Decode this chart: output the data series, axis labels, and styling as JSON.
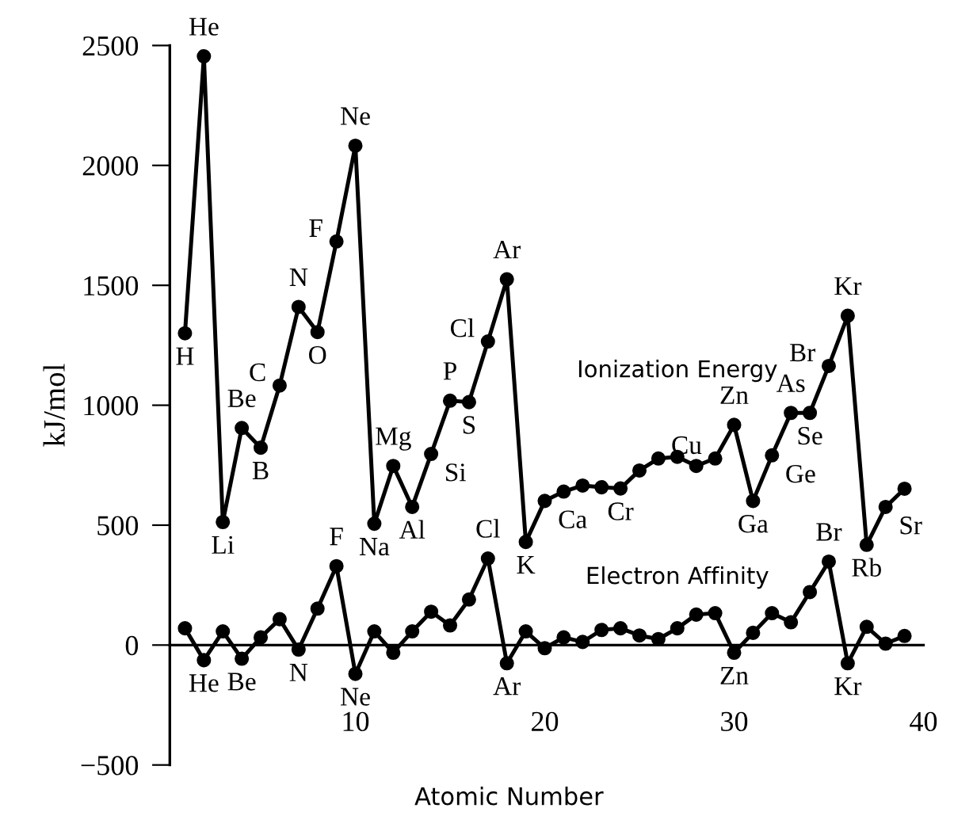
{
  "chart_data": {
    "type": "line",
    "xlabel": "Atomic Number",
    "ylabel": "kJ/mol",
    "xlim": [
      0.2,
      40
    ],
    "xticks": [
      10,
      20,
      30,
      40
    ],
    "ylim": [
      -500,
      2500
    ],
    "yticks": [
      -500,
      0,
      500,
      1000,
      1500,
      2000,
      2500
    ],
    "marker": "circle",
    "line_style": "solid",
    "grid": false,
    "legend": false,
    "series": [
      {
        "name": "Ionization Energy",
        "color": "#000000",
        "x": [
          1,
          2,
          3,
          4,
          5,
          6,
          7,
          8,
          9,
          10,
          11,
          12,
          13,
          14,
          15,
          16,
          17,
          18,
          19,
          20,
          21,
          22,
          23,
          24,
          25,
          26,
          27,
          28,
          29,
          30,
          31,
          32,
          33,
          34,
          35,
          36,
          37,
          38,
          39
        ],
        "values": [
          1300,
          2455,
          513,
          905,
          823,
          1082,
          1410,
          1305,
          1683,
          2082,
          506,
          747,
          576,
          797,
          1019,
          1013,
          1266,
          1525,
          430,
          601,
          640,
          665,
          658,
          653,
          728,
          778,
          785,
          747,
          778,
          918,
          601,
          791,
          968,
          968,
          1164,
          1373,
          418,
          576,
          652
        ]
      },
      {
        "name": "Electron Affinity",
        "color": "#000000",
        "x": [
          1,
          2,
          3,
          4,
          5,
          6,
          7,
          8,
          9,
          10,
          11,
          12,
          13,
          14,
          15,
          16,
          17,
          18,
          19,
          20,
          21,
          22,
          23,
          24,
          25,
          26,
          27,
          28,
          29,
          30,
          31,
          32,
          33,
          34,
          35,
          36,
          37,
          38,
          39
        ],
        "values": [
          70,
          -63,
          57,
          -57,
          32,
          108,
          -19,
          152,
          329,
          -120,
          57,
          -32,
          57,
          139,
          82,
          190,
          361,
          -76,
          57,
          -13,
          32,
          13,
          63,
          70,
          40,
          25,
          70,
          127,
          133,
          -32,
          51,
          133,
          95,
          221,
          348,
          -76,
          76,
          6,
          38
        ]
      }
    ],
    "annotations": [
      {
        "text": "H",
        "x": 1,
        "y": 1300
      },
      {
        "text": "He",
        "x": 2,
        "y": 2455
      },
      {
        "text": "Li",
        "x": 3,
        "y": 513
      },
      {
        "text": "Be",
        "x": 4,
        "y": 905
      },
      {
        "text": "B",
        "x": 5,
        "y": 823
      },
      {
        "text": "C",
        "x": 6,
        "y": 1082
      },
      {
        "text": "N",
        "x": 7,
        "y": 1410
      },
      {
        "text": "O",
        "x": 8,
        "y": 1305
      },
      {
        "text": "F",
        "x": 9,
        "y": 1683
      },
      {
        "text": "Ne",
        "x": 10,
        "y": 2082
      },
      {
        "text": "Na",
        "x": 11,
        "y": 506
      },
      {
        "text": "Mg",
        "x": 12,
        "y": 747
      },
      {
        "text": "Al",
        "x": 13,
        "y": 576
      },
      {
        "text": "Si",
        "x": 14,
        "y": 797
      },
      {
        "text": "P",
        "x": 15,
        "y": 1019
      },
      {
        "text": "S",
        "x": 16,
        "y": 1013
      },
      {
        "text": "Cl",
        "x": 17,
        "y": 1266
      },
      {
        "text": "Ar",
        "x": 18,
        "y": 1525
      },
      {
        "text": "K",
        "x": 19,
        "y": 430
      },
      {
        "text": "Ca",
        "x": 20,
        "y": 601
      },
      {
        "text": "Cr",
        "x": 24,
        "y": 653
      },
      {
        "text": "Cu",
        "x": 29,
        "y": 778
      },
      {
        "text": "Zn",
        "x": 30,
        "y": 918
      },
      {
        "text": "Ga",
        "x": 31,
        "y": 601
      },
      {
        "text": "Ge",
        "x": 32,
        "y": 791
      },
      {
        "text": "As",
        "x": 33,
        "y": 968
      },
      {
        "text": "Se",
        "x": 34,
        "y": 968
      },
      {
        "text": "Br",
        "x": 35,
        "y": 1164
      },
      {
        "text": "Kr",
        "x": 36,
        "y": 1373
      },
      {
        "text": "Rb",
        "x": 37,
        "y": 418
      },
      {
        "text": "Sr",
        "x": 38,
        "y": 576
      },
      {
        "text": "He",
        "x": 2,
        "y": -63
      },
      {
        "text": "Be",
        "x": 4,
        "y": -57
      },
      {
        "text": "N",
        "x": 7,
        "y": -19
      },
      {
        "text": "F",
        "x": 9,
        "y": 329
      },
      {
        "text": "Ne",
        "x": 10,
        "y": -120
      },
      {
        "text": "Cl",
        "x": 17,
        "y": 361
      },
      {
        "text": "Ar",
        "x": 18,
        "y": -76
      },
      {
        "text": "Zn",
        "x": 30,
        "y": -32
      },
      {
        "text": "Br",
        "x": 35,
        "y": 348
      },
      {
        "text": "Kr",
        "x": 36,
        "y": -76
      }
    ]
  }
}
